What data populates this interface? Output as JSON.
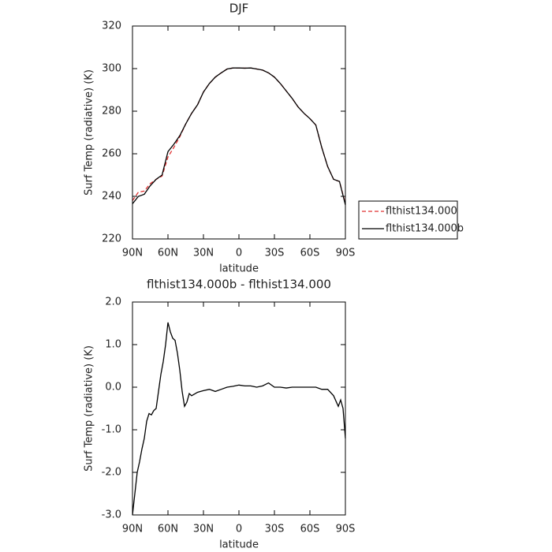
{
  "chart_data": [
    {
      "type": "line",
      "title": "DJF",
      "xlabel": "latitude",
      "ylabel": "Surf Temp (radiative) (K)",
      "x": [
        90,
        85,
        80,
        75,
        70,
        65,
        60,
        55,
        50,
        45,
        40,
        35,
        30,
        25,
        20,
        15,
        10,
        5,
        0,
        -5,
        -10,
        -15,
        -20,
        -25,
        -30,
        -35,
        -40,
        -45,
        -50,
        -55,
        -60,
        -65,
        -70,
        -75,
        -80,
        -85,
        -90
      ],
      "series": [
        {
          "name": "flthist134.000",
          "color": "#e03030",
          "line_style": "dashed",
          "values": [
            238,
            242,
            242.5,
            246,
            248,
            249.5,
            258.5,
            263,
            268,
            274,
            279,
            283,
            289,
            293,
            296,
            298,
            299.8,
            300.3,
            300.3,
            300.2,
            300.3,
            299.8,
            299.3,
            298,
            296,
            293,
            289.5,
            286,
            282,
            279,
            276.5,
            273.5,
            263,
            254,
            248,
            247,
            236.5
          ]
        },
        {
          "name": "flthist134.000b",
          "color": "#000000",
          "line_style": "solid",
          "values": [
            236.5,
            240,
            241,
            245,
            248,
            250,
            261,
            264.5,
            268.5,
            274,
            279,
            283,
            289,
            293,
            296,
            298,
            299.8,
            300.3,
            300.3,
            300.2,
            300.3,
            299.8,
            299.3,
            298,
            296,
            293,
            289.5,
            286,
            282,
            279,
            276.5,
            273.5,
            263,
            254,
            248,
            247,
            236
          ]
        }
      ],
      "xlim": [
        90,
        -90
      ],
      "xticks": [
        {
          "value": 90,
          "label": "90N"
        },
        {
          "value": 60,
          "label": "60N"
        },
        {
          "value": 30,
          "label": "30N"
        },
        0,
        {
          "value": -30,
          "label": "30S"
        },
        {
          "value": -60,
          "label": "60S"
        },
        {
          "value": -90,
          "label": "90S"
        }
      ],
      "ylim": [
        220,
        320
      ],
      "yticks": [
        220,
        240,
        260,
        280,
        300,
        320
      ],
      "legend": "right"
    },
    {
      "type": "line",
      "title": "flthist134.000b - flthist134.000",
      "xlabel": "latitude",
      "ylabel": "Surf Temp (radiative) (K)",
      "x": [
        90,
        88,
        86,
        84,
        82,
        80,
        78,
        76,
        74,
        72,
        70,
        68,
        66,
        64,
        62,
        60,
        58,
        56,
        54,
        52,
        50,
        48,
        46,
        44,
        42,
        40,
        35,
        30,
        25,
        20,
        15,
        10,
        5,
        0,
        -5,
        -10,
        -15,
        -20,
        -25,
        -30,
        -35,
        -40,
        -45,
        -50,
        -55,
        -60,
        -65,
        -70,
        -75,
        -80,
        -84,
        -86,
        -88,
        -90
      ],
      "color": "#000000",
      "values": [
        -3.0,
        -2.5,
        -2.0,
        -1.75,
        -1.45,
        -1.2,
        -0.8,
        -0.62,
        -0.65,
        -0.55,
        -0.5,
        -0.1,
        0.3,
        0.6,
        1.0,
        1.52,
        1.3,
        1.15,
        1.1,
        0.8,
        0.4,
        -0.1,
        -0.45,
        -0.35,
        -0.15,
        -0.2,
        -0.12,
        -0.08,
        -0.05,
        -0.1,
        -0.05,
        0.0,
        0.02,
        0.05,
        0.03,
        0.03,
        0.0,
        0.03,
        0.1,
        0.0,
        0.0,
        -0.02,
        0.0,
        0.0,
        0.0,
        0.0,
        0.0,
        -0.05,
        -0.05,
        -0.2,
        -0.45,
        -0.3,
        -0.5,
        -1.2
      ],
      "xlim": [
        90,
        -90
      ],
      "xticks": [
        {
          "value": 90,
          "label": "90N"
        },
        {
          "value": 60,
          "label": "60N"
        },
        {
          "value": 30,
          "label": "30N"
        },
        0,
        {
          "value": -30,
          "label": "30S"
        },
        {
          "value": -60,
          "label": "60S"
        },
        {
          "value": -90,
          "label": "90S"
        }
      ],
      "ylim": [
        -3,
        2
      ],
      "yticks": [
        {
          "value": -3,
          "label": "-3.0"
        },
        {
          "value": -2,
          "label": "-2.0"
        },
        {
          "value": -1,
          "label": "-1.0"
        },
        {
          "value": 0,
          "label": "0.0"
        },
        {
          "value": 1,
          "label": "1.0"
        },
        {
          "value": 2,
          "label": "2.0"
        }
      ]
    }
  ]
}
